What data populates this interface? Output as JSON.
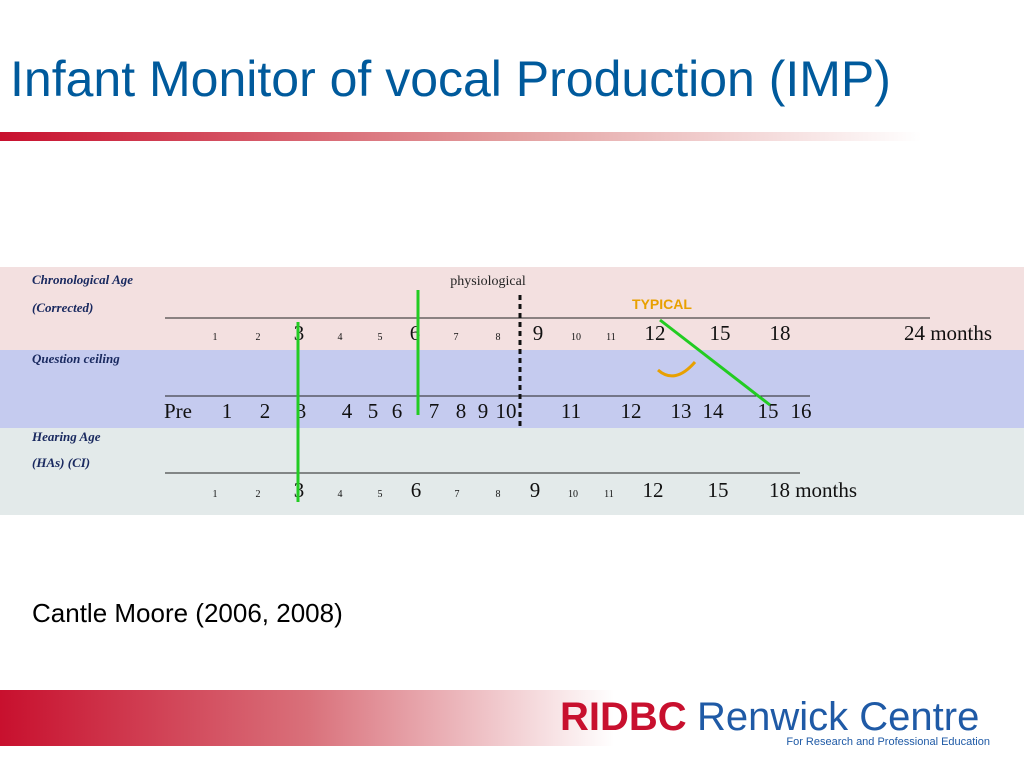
{
  "title": "Infant Monitor of vocal Production (IMP)",
  "diagram": {
    "physiological": "physiological",
    "typical": "TYPICAL",
    "rows": [
      {
        "labels": [
          "Chronological Age",
          "(Corrected)"
        ],
        "ticks": [
          "1",
          "2",
          "3",
          "4",
          "5",
          "6",
          "7",
          "8",
          "9",
          "10",
          "11",
          "12",
          "15",
          "18",
          "24 months"
        ]
      },
      {
        "labels": [
          "Question ceiling"
        ],
        "ticks": [
          "Pre",
          "1",
          "2",
          "3",
          "4",
          "5",
          "6",
          "7",
          "8",
          "9",
          "10",
          "11",
          "12",
          "13",
          "14",
          "15",
          "16"
        ]
      },
      {
        "labels": [
          "Hearing Age",
          "(HAs)    (CI)"
        ],
        "ticks": [
          "1",
          "2",
          "3",
          "4",
          "5",
          "6",
          "7",
          "8",
          "9",
          "10",
          "11",
          "12",
          "15",
          "18 months"
        ]
      }
    ]
  },
  "citation": "Cantle Moore (2006, 2008)",
  "logo": {
    "brand": "RIDBC",
    "name": "Renwick Centre",
    "tagline": "For Research and Professional Education"
  }
}
